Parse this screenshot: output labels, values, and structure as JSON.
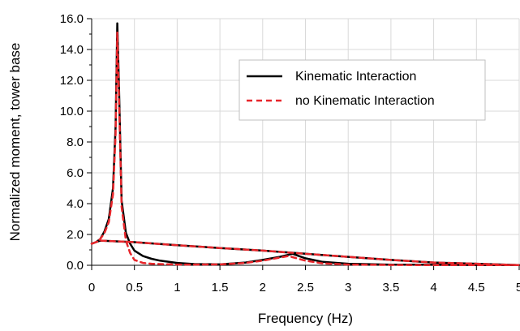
{
  "chart_data": {
    "type": "line",
    "xlabel": "Frequency (Hz)",
    "ylabel": "Normalized moment, tower base",
    "xlim": [
      0,
      5
    ],
    "ylim": [
      0,
      16
    ],
    "x_ticks": [
      "0",
      "0.5",
      "1",
      "1.5",
      "2",
      "2.5",
      "3",
      "3.5",
      "4",
      "4.5",
      "5"
    ],
    "y_ticks": [
      "0.0",
      "2.0",
      "4.0",
      "6.0",
      "8.0",
      "10.0",
      "12.0",
      "14.0",
      "16.0"
    ],
    "grid": true,
    "legend_position": "top-right",
    "series": [
      {
        "name": "Kinematic Interaction",
        "color": "#000000",
        "style": "solid",
        "x": [
          0,
          0.05,
          0.1,
          0.15,
          0.2,
          0.25,
          0.28,
          0.3,
          0.32,
          0.35,
          0.4,
          0.45,
          0.5,
          0.6,
          0.7,
          0.8,
          1.0,
          1.2,
          1.5,
          1.8,
          2.0,
          2.2,
          2.35,
          2.5,
          2.7,
          3.0,
          3.5,
          4.0,
          4.5,
          5.0,
          4.5,
          4.0,
          3.5,
          3.0,
          2.5,
          2.0,
          1.5,
          1.0,
          0.5,
          0.1,
          0.05,
          0
        ],
        "y": [
          1.4,
          1.5,
          1.7,
          2.2,
          3.0,
          5.0,
          9.0,
          15.7,
          11.5,
          4.2,
          2.1,
          1.4,
          0.95,
          0.6,
          0.42,
          0.3,
          0.15,
          0.08,
          0.06,
          0.18,
          0.35,
          0.55,
          0.75,
          0.45,
          0.22,
          0.1,
          0.04,
          0.03,
          0.02,
          0.01,
          0.1,
          0.18,
          0.35,
          0.55,
          0.75,
          0.95,
          1.12,
          1.3,
          1.5,
          1.6,
          1.5,
          1.4
        ]
      },
      {
        "name": "no Kinematic Interaction",
        "color": "#e8262b",
        "style": "dashed",
        "x": [
          0,
          0.05,
          0.1,
          0.15,
          0.2,
          0.25,
          0.28,
          0.3,
          0.32,
          0.35,
          0.4,
          0.45,
          0.5,
          0.6,
          0.7,
          0.8,
          1.0,
          1.2,
          1.5,
          1.8,
          2.0,
          2.2,
          2.3,
          2.5,
          2.7,
          3.0,
          3.5,
          4.0,
          4.5,
          5.0,
          4.5,
          4.0,
          3.5,
          3.0,
          2.5,
          2.0,
          1.5,
          1.0,
          0.5,
          0.1,
          0.05,
          0
        ],
        "y": [
          1.4,
          1.5,
          1.7,
          2.1,
          2.8,
          4.6,
          8.5,
          15.1,
          10.8,
          3.8,
          1.6,
          0.8,
          0.35,
          0.15,
          0.1,
          0.08,
          0.05,
          0.05,
          0.06,
          0.15,
          0.3,
          0.5,
          0.6,
          0.3,
          0.12,
          0.05,
          0.02,
          0.01,
          0.01,
          0.01,
          0.1,
          0.18,
          0.35,
          0.55,
          0.75,
          0.95,
          1.12,
          1.3,
          1.5,
          1.6,
          1.5,
          1.4
        ]
      }
    ]
  }
}
